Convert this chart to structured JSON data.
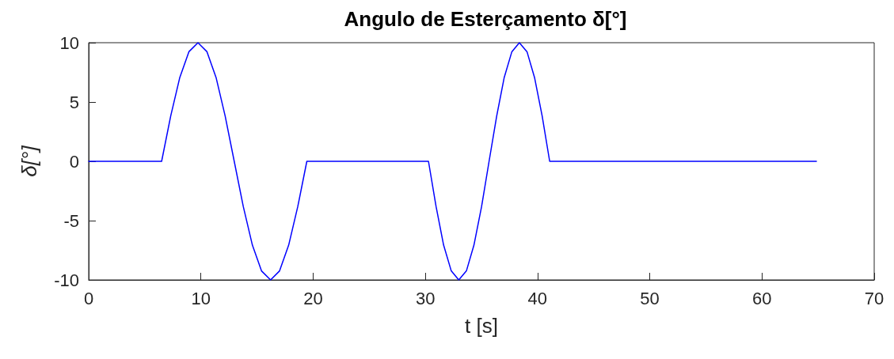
{
  "chart_data": {
    "type": "line",
    "title": "Angulo de Esterçamento δ[°]",
    "xlabel": "t [s]",
    "ylabel": "δ[°]",
    "series": [
      {
        "color": "#0000ff",
        "x": [
          0,
          6.5,
          7.31,
          8.12,
          8.93,
          9.74,
          10.54,
          11.35,
          12.16,
          12.97,
          13.78,
          14.59,
          15.4,
          16.21,
          17.01,
          17.82,
          18.63,
          19.44,
          30.28,
          30.96,
          31.63,
          32.31,
          32.98,
          33.66,
          34.33,
          35.01,
          35.68,
          36.36,
          37.03,
          37.71,
          38.38,
          39.06,
          39.73,
          40.41,
          41.08,
          64.85
        ],
        "values": [
          0,
          0,
          3.83,
          7.07,
          9.24,
          10,
          9.24,
          7.07,
          3.83,
          0,
          -3.83,
          -7.07,
          -9.24,
          -10,
          -9.24,
          -7.07,
          -3.83,
          0,
          0,
          -3.83,
          -7.07,
          -9.24,
          -10,
          -9.24,
          -7.07,
          -3.83,
          0,
          3.83,
          7.07,
          9.24,
          10,
          9.24,
          7.07,
          3.83,
          0,
          0
        ]
      }
    ],
    "xlim": [
      0,
      70
    ],
    "xticks": [
      0,
      10,
      20,
      30,
      40,
      50,
      60,
      70
    ],
    "ylim": [
      -10,
      10
    ],
    "yticks": [
      -10,
      -5,
      0,
      5,
      10
    ],
    "grid": false,
    "marker": "none",
    "line_style": "solid"
  }
}
